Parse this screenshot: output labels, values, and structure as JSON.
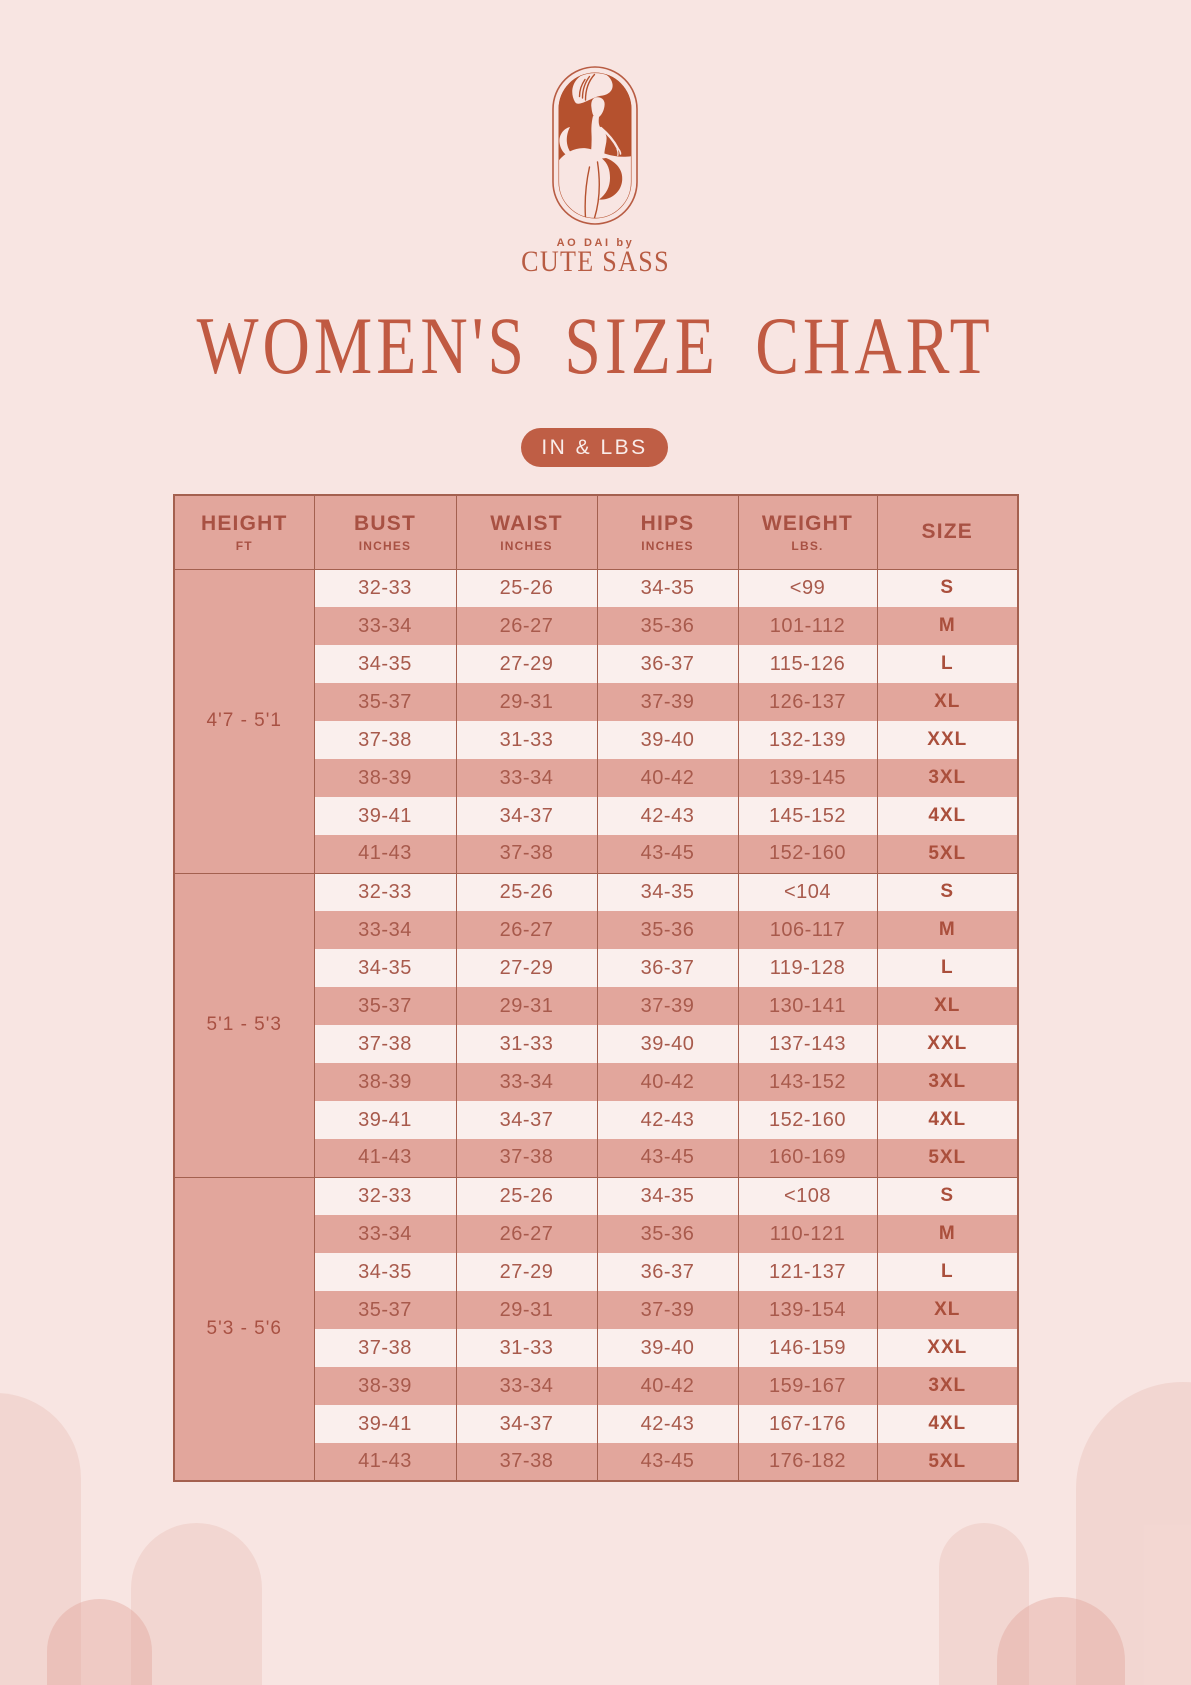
{
  "brand": {
    "tagline": "AO DAI by",
    "name": "CUTE SASS"
  },
  "page_title": "WOMEN'S SIZE CHART",
  "unit_badge": "IN & LBS",
  "colors": {
    "background": "#f8e5e2",
    "salmon": "#e2a69c",
    "light_row": "#f9edeb",
    "terracotta": "#bf5e45",
    "title": "#c05a42",
    "table_border": "#a4604f",
    "table_text": "#ad5d4e"
  },
  "table": {
    "columns": [
      {
        "label": "HEIGHT",
        "sub": "FT"
      },
      {
        "label": "BUST",
        "sub": "INCHES"
      },
      {
        "label": "WAIST",
        "sub": "INCHES"
      },
      {
        "label": "HIPS",
        "sub": "INCHES"
      },
      {
        "label": "WEIGHT",
        "sub": "LBS."
      },
      {
        "label": "SIZE",
        "sub": ""
      }
    ],
    "groups": [
      {
        "height": "4'7 - 5'1",
        "rows": [
          [
            "32-33",
            "25-26",
            "34-35",
            "<99",
            "S"
          ],
          [
            "33-34",
            "26-27",
            "35-36",
            "101-112",
            "M"
          ],
          [
            "34-35",
            "27-29",
            "36-37",
            "115-126",
            "L"
          ],
          [
            "35-37",
            "29-31",
            "37-39",
            "126-137",
            "XL"
          ],
          [
            "37-38",
            "31-33",
            "39-40",
            "132-139",
            "XXL"
          ],
          [
            "38-39",
            "33-34",
            "40-42",
            "139-145",
            "3XL"
          ],
          [
            "39-41",
            "34-37",
            "42-43",
            "145-152",
            "4XL"
          ],
          [
            "41-43",
            "37-38",
            "43-45",
            "152-160",
            "5XL"
          ]
        ]
      },
      {
        "height": "5'1 - 5'3",
        "rows": [
          [
            "32-33",
            "25-26",
            "34-35",
            "<104",
            "S"
          ],
          [
            "33-34",
            "26-27",
            "35-36",
            "106-117",
            "M"
          ],
          [
            "34-35",
            "27-29",
            "36-37",
            "119-128",
            "L"
          ],
          [
            "35-37",
            "29-31",
            "37-39",
            "130-141",
            "XL"
          ],
          [
            "37-38",
            "31-33",
            "39-40",
            "137-143",
            "XXL"
          ],
          [
            "38-39",
            "33-34",
            "40-42",
            "143-152",
            "3XL"
          ],
          [
            "39-41",
            "34-37",
            "42-43",
            "152-160",
            "4XL"
          ],
          [
            "41-43",
            "37-38",
            "43-45",
            "160-169",
            "5XL"
          ]
        ]
      },
      {
        "height": "5'3 - 5'6",
        "rows": [
          [
            "32-33",
            "25-26",
            "34-35",
            "<108",
            "S"
          ],
          [
            "33-34",
            "26-27",
            "35-36",
            "110-121",
            "M"
          ],
          [
            "34-35",
            "27-29",
            "36-37",
            "121-137",
            "L"
          ],
          [
            "35-37",
            "29-31",
            "37-39",
            "139-154",
            "XL"
          ],
          [
            "37-38",
            "31-33",
            "39-40",
            "146-159",
            "XXL"
          ],
          [
            "38-39",
            "33-34",
            "40-42",
            "159-167",
            "3XL"
          ],
          [
            "39-41",
            "34-37",
            "42-43",
            "167-176",
            "4XL"
          ],
          [
            "41-43",
            "37-38",
            "43-45",
            "176-182",
            "5XL"
          ]
        ]
      }
    ]
  }
}
